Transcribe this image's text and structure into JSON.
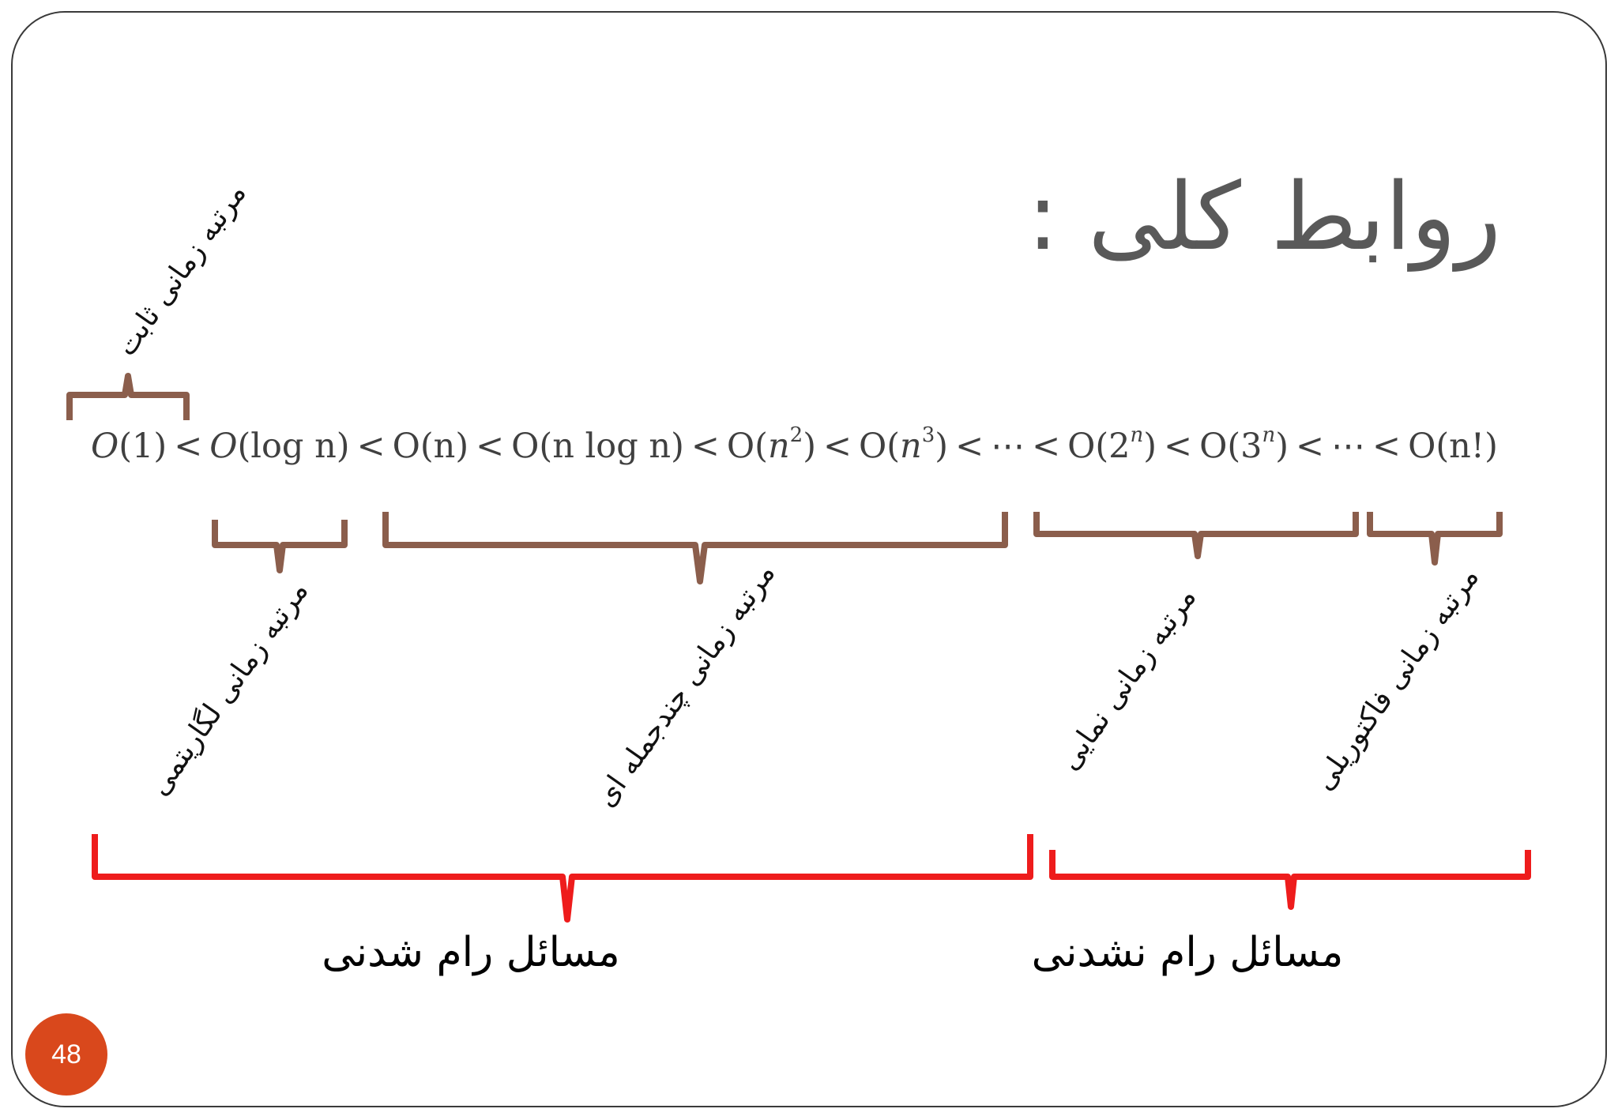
{
  "slide": {
    "title": "روابط کلی :",
    "page_number": "48"
  },
  "formula": {
    "terms": [
      "1",
      "log n",
      "n",
      "n log n",
      "n",
      "n",
      "2",
      "3",
      "n!"
    ],
    "exponents": [
      "2",
      "3",
      "n",
      "n"
    ],
    "ellipsis": "⋯",
    "less_than": "<"
  },
  "labels": {
    "constant": "مرتبه زمانی ثابت",
    "logarithmic": "مرتبه زمانی لگاریتمی",
    "polynomial": "مرتبه زمانی چندجمله ای",
    "exponential": "مرتبه زمانی نمایی",
    "factorial": "مرتبه زمانی فاکتوریلی"
  },
  "groups": {
    "tractable": "مسائل رام شدنی",
    "intractable": "مسائل رام نشدنی"
  },
  "colors": {
    "small_brace": "#8b5e4c",
    "large_brace": "#ee1c1c",
    "badge": "#d9481c",
    "title": "#595959"
  }
}
